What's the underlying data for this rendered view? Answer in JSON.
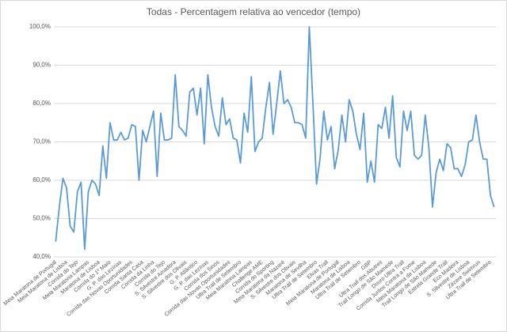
{
  "chart_data": {
    "type": "line",
    "title": "Todas - Percentagem relativa ao vencedor (tempo)",
    "categories": [
      "Meia Maratona de Portugal",
      null,
      null,
      "Meia Maratona de Lisboa",
      null,
      null,
      "Corrida do Tejo",
      null,
      null,
      "Meia Maratona Lampas",
      null,
      null,
      "Maratona de Lisboa",
      null,
      null,
      "Corrida do 1º Maio",
      null,
      null,
      "G. P. das Lezírias",
      null,
      null,
      "Corrida das Novas Oportunidades",
      null,
      null,
      "Corrida Santa Casa",
      null,
      null,
      "Corrida da Linha",
      null,
      null,
      "Corrida do Tejo",
      null,
      null,
      "S. Silvestre Amadora",
      null,
      null,
      "S. Silvestre dos Olivais",
      null,
      null,
      "G. P. Atlântico",
      null,
      null,
      "G. P. das Lezírias",
      null,
      null,
      "Corrida dos Sinos",
      null,
      null,
      "Corrida das Novas Oportunidades",
      null,
      null,
      "Ultra Trail de Setembro",
      null,
      null,
      "Meia Maratona Lampas",
      null,
      null,
      "Challenge AME",
      null,
      null,
      "Corrida do Sporting",
      null,
      null,
      "Meia Maratona da Nazaré",
      null,
      null,
      "S. Silvestre dos Olivais",
      null,
      null,
      "Maratona de Sevilha",
      null,
      null,
      "Ultra Trail de Setembro",
      null,
      null,
      "Elvas Trail",
      null,
      null,
      "Meia Maratona de Portugal",
      null,
      null,
      "Maratona de Lisboa",
      null,
      null,
      "Ultra Trail de Setembro",
      null,
      null,
      "GBP",
      null,
      null,
      "Ultra Trail dos Abutres",
      null,
      null,
      "Trail Longo de São Mamede",
      null,
      null,
      "Douro Ultra Trail",
      null,
      null,
      "Corrida Juntos Contra a Fome",
      null,
      null,
      "Meia Maratona de Lisboa",
      null,
      null,
      "Trail Longo de São Mamede",
      null,
      null,
      "Estrela Grande Trail",
      null,
      null,
      "Eco Madeira",
      null,
      null,
      "S. Silvestre de Lisboa",
      null,
      null,
      "Zézere Swimrun",
      null,
      null,
      "Ultra Trail de Setembro",
      null
    ],
    "values": [
      44,
      53,
      60.5,
      58,
      48,
      46.5,
      57,
      59.5,
      42,
      57,
      60,
      59,
      56,
      69,
      60.5,
      75,
      70.5,
      70.5,
      72.5,
      70.5,
      71,
      74.5,
      74,
      60,
      73,
      70,
      74,
      78,
      61,
      77.5,
      70.5,
      70.5,
      71,
      87.5,
      74,
      73,
      71.5,
      83,
      84,
      77,
      84,
      69.5,
      87.5,
      79,
      74,
      71.5,
      81.5,
      74.5,
      76,
      71,
      70.5,
      64.5,
      77.5,
      72.5,
      87,
      67.5,
      70,
      71,
      79,
      85.5,
      72,
      80,
      88.5,
      80,
      81,
      79,
      75,
      75,
      74.5,
      71,
      100,
      80,
      59,
      66,
      78,
      70.5,
      74,
      63,
      68,
      77,
      70,
      81,
      78,
      72,
      68,
      77.5,
      59.5,
      65,
      59.5,
      74.5,
      73.5,
      79,
      71,
      82,
      66,
      63.5,
      78,
      73,
      78,
      66.5,
      65.5,
      66.5,
      77,
      68.5,
      53,
      62,
      65.5,
      62.5,
      69.5,
      68.5,
      63,
      63,
      61,
      64,
      70,
      70.5,
      77,
      70,
      65.5,
      65.5,
      56,
      53
    ],
    "color": "#5b9bd5",
    "ylim": [
      40,
      100
    ],
    "yticks": [
      {
        "value": 40,
        "label": "40,0%"
      },
      {
        "value": 50,
        "label": "50,0%"
      },
      {
        "value": 60,
        "label": "60,0%"
      },
      {
        "value": 70,
        "label": "70,0%"
      },
      {
        "value": 80,
        "label": "80,0%"
      },
      {
        "value": 90,
        "label": "90,0%"
      },
      {
        "value": 100,
        "label": "100,0%"
      }
    ],
    "grid": true
  }
}
